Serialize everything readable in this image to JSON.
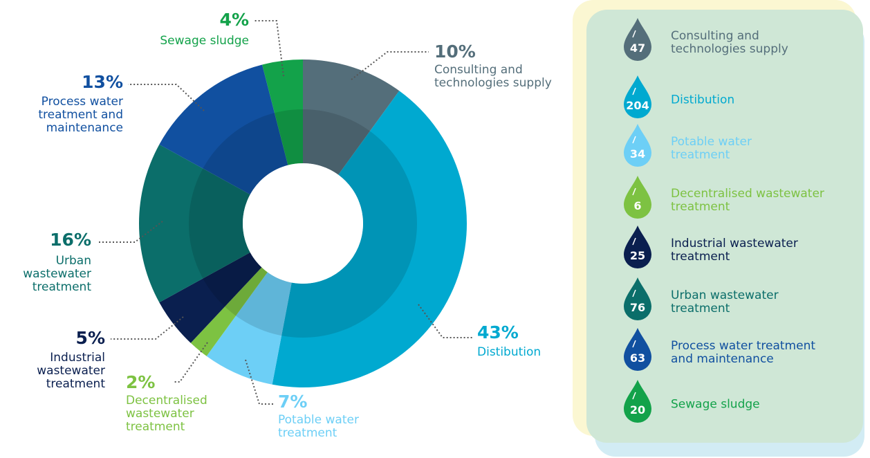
{
  "chart_data": {
    "type": "pie",
    "donut": true,
    "categories": [
      "Consulting and technologies supply",
      "Distibution",
      "Potable water treatment",
      "Decentralised wastewater treatment",
      "Industrial wastewater treatment",
      "Urban wastewater treatment",
      "Process water treatment and maintenance",
      "Sewage sludge"
    ],
    "values": [
      10,
      43,
      7,
      2,
      5,
      16,
      13,
      4
    ],
    "value_labels": [
      "10%",
      "43%",
      "7%",
      "2%",
      "5%",
      "16%",
      "13%",
      "4%"
    ],
    "colors": [
      "#546e7a",
      "#00a9d0",
      "#6dcff6",
      "#7dc242",
      "#0a1f4f",
      "#0b6e6a",
      "#1150a0",
      "#13a24a"
    ],
    "legend_counts": [
      47,
      204,
      34,
      6,
      25,
      76,
      63,
      20
    ]
  }
}
